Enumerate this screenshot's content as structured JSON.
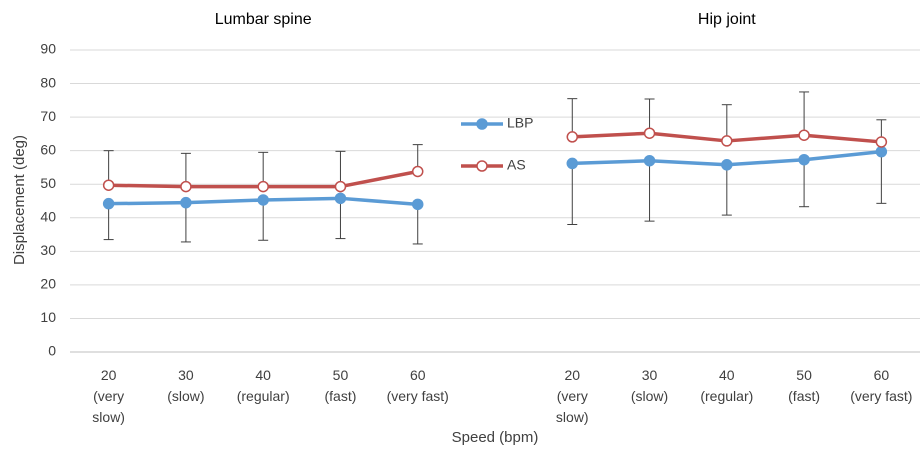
{
  "chart_data": {
    "type": "line",
    "ylabel": "Displacement (deg)",
    "xlabel": "Speed (bpm)",
    "ylim": [
      0,
      90
    ],
    "yticks": [
      0,
      10,
      20,
      30,
      40,
      50,
      60,
      70,
      80,
      90
    ],
    "grid": true,
    "legend": "center",
    "categories": [
      "20\n(very\nslow)",
      "30\n(slow)",
      "40\n(regular)",
      "50\n(fast)",
      "60\n(very fast)"
    ],
    "legend_series": [
      {
        "name": "LBP",
        "color": "#5b9bd5",
        "marker": "filled"
      },
      {
        "name": "AS",
        "color": "#c0504d",
        "marker": "hollow"
      }
    ],
    "panels": [
      {
        "title": "Lumbar spine",
        "series": [
          {
            "name": "LBP",
            "color": "#5b9bd5",
            "marker": "filled",
            "error_direction": "minus",
            "values": [
              44.2,
              44.5,
              45.3,
              45.8,
              44.0
            ],
            "errors": [
              10.7,
              11.7,
              12.0,
              12.0,
              11.8
            ]
          },
          {
            "name": "AS",
            "color": "#c0504d",
            "marker": "hollow",
            "error_direction": "plus",
            "values": [
              49.7,
              49.3,
              49.3,
              49.3,
              53.8
            ],
            "errors": [
              10.3,
              9.9,
              10.2,
              10.5,
              8.0
            ]
          }
        ]
      },
      {
        "title": "Hip joint",
        "series": [
          {
            "name": "LBP",
            "color": "#5b9bd5",
            "marker": "filled",
            "error_direction": "minus",
            "values": [
              56.2,
              57.0,
              55.8,
              57.3,
              59.7
            ],
            "errors": [
              18.2,
              18.0,
              15.0,
              14.0,
              15.4
            ]
          },
          {
            "name": "AS",
            "color": "#c0504d",
            "marker": "hollow",
            "error_direction": "plus",
            "values": [
              64.1,
              65.2,
              62.9,
              64.6,
              62.6
            ],
            "errors": [
              11.4,
              10.2,
              10.8,
              12.9,
              6.6
            ]
          }
        ]
      }
    ]
  }
}
